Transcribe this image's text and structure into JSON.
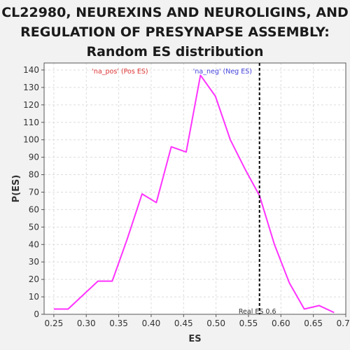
{
  "chart_data": {
    "type": "line",
    "title": "CL22980, NEUREXINS AND NEUROLIGINS, AND REGULATION OF PRESYNAPSE ASSEMBLY: Random ES distribution",
    "xlabel": "ES",
    "ylabel": "P(ES)",
    "xlim": [
      0.235,
      0.7
    ],
    "ylim": [
      0,
      144
    ],
    "x_ticks": [
      "0.25",
      "0.30",
      "0.35",
      "0.40",
      "0.45",
      "0.50",
      "0.55",
      "0.60",
      "0.65",
      "0.70"
    ],
    "y_ticks": [
      "0",
      "10",
      "20",
      "30",
      "40",
      "50",
      "60",
      "70",
      "80",
      "90",
      "100",
      "110",
      "120",
      "130",
      "140"
    ],
    "grid": true,
    "series": [
      {
        "color": "#ff33ff",
        "x": [
          0.25,
          0.272,
          0.318,
          0.34,
          0.363,
          0.386,
          0.408,
          0.431,
          0.454,
          0.476,
          0.499,
          0.522,
          0.545,
          0.567,
          0.59,
          0.613,
          0.636,
          0.659,
          0.682
        ],
        "y": [
          3,
          3,
          19,
          19,
          43,
          69,
          64,
          96,
          93,
          137,
          125,
          100,
          83,
          68,
          40,
          18,
          3,
          5,
          1
        ]
      }
    ],
    "real_es": {
      "value": 0.567,
      "label": "Real ES 0.6",
      "color": "#000000"
    },
    "annotations": [
      {
        "text": "'na_pos' (Pos ES)",
        "color": "#dd3333",
        "x": 0.352,
        "y": 138
      },
      {
        "text": "'na_neg' (Neg ES)",
        "color": "#4444dd",
        "x": 0.51,
        "y": 138
      }
    ]
  }
}
